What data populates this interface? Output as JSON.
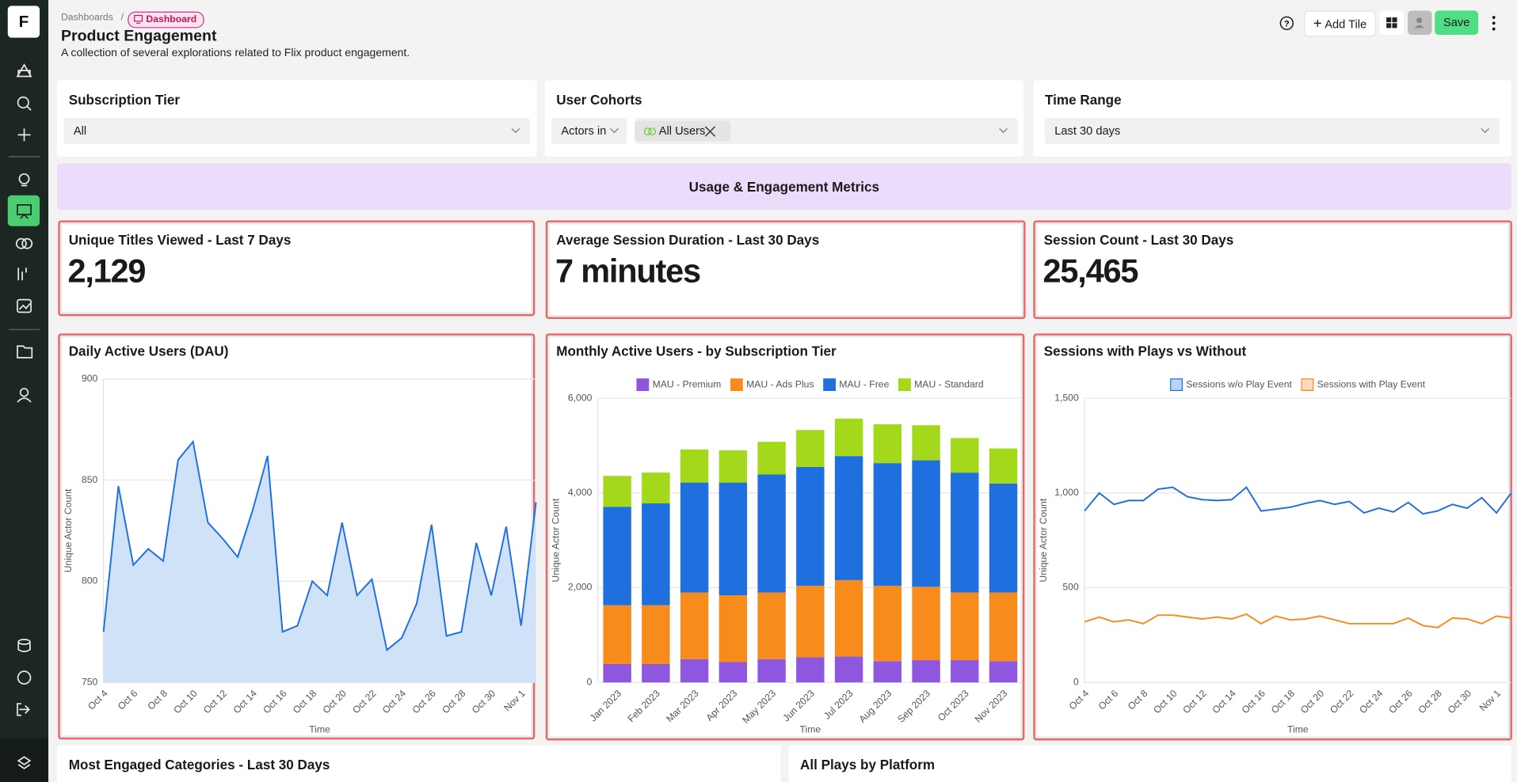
{
  "header": {
    "breadcrumb": "Dashboards",
    "badge": "Dashboard",
    "title": "Product Engagement",
    "description": "A collection of several explorations related to Flix product engagement.",
    "buttons": {
      "add_tile": "Add Tile",
      "save": "Save"
    }
  },
  "logo": "F",
  "filters": [
    {
      "label": "Subscription Tier",
      "value": "All"
    },
    {
      "label": "User Cohorts",
      "prefix": "Actors in",
      "value": "All Users"
    },
    {
      "label": "Time Range",
      "value": "Last 30 days"
    }
  ],
  "banner": "Usage & Engagement Metrics",
  "kpis": [
    {
      "title": "Unique Titles Viewed - Last 7 Days",
      "value": "2,129"
    },
    {
      "title": "Average Session Duration - Last 30 Days",
      "value": "7 minutes"
    },
    {
      "title": "Session Count - Last 30 Days",
      "value": "25,465"
    }
  ],
  "chart_data": [
    {
      "type": "area",
      "title": "Daily Active Users (DAU)",
      "x_label": "Time",
      "y_label": "Unique Actor Count",
      "color": "#1f6fde",
      "fill": "#cfe2f8",
      "categories": [
        "Oct 4",
        null,
        "Oct 6",
        null,
        "Oct 8",
        null,
        "Oct 10",
        null,
        "Oct 12",
        null,
        "Oct 14",
        null,
        "Oct 16",
        null,
        "Oct 18",
        null,
        "Oct 20",
        null,
        "Oct 22",
        null,
        "Oct 24",
        null,
        "Oct 26",
        null,
        "Oct 28",
        null,
        "Oct 30",
        null,
        "Nov 1",
        null
      ],
      "values": [
        775,
        847,
        808,
        816,
        810,
        860,
        869,
        829,
        821,
        812,
        835,
        862,
        775,
        778,
        800,
        793,
        829,
        793,
        801,
        766,
        772,
        789,
        828,
        773,
        775,
        819,
        793,
        827,
        778,
        839
      ],
      "ylim": [
        750,
        900
      ],
      "yticks": [
        750,
        800,
        850,
        900
      ],
      "grid": true
    },
    {
      "type": "bar",
      "stacked": true,
      "title": "Monthly Active Users - by Subscription Tier",
      "x_label": "Time",
      "y_label": "Unique Actor Count",
      "legend": "top",
      "categories": [
        "Jan 2023",
        "Feb 2023",
        "Mar 2023",
        "Apr 2023",
        "May 2023",
        "Jun 2023",
        "Jul 2023",
        "Aug 2023",
        "Sep 2023",
        "Oct 2023",
        "Nov 2023"
      ],
      "series": [
        {
          "name": "MAU - Premium",
          "color": "#8f56e0",
          "values": [
            390,
            390,
            490,
            430,
            490,
            530,
            550,
            450,
            470,
            470,
            450
          ]
        },
        {
          "name": "MAU - Ads Plus",
          "color": "#f78c1c",
          "values": [
            1240,
            1240,
            1410,
            1410,
            1410,
            1510,
            1610,
            1590,
            1550,
            1430,
            1450
          ]
        },
        {
          "name": "MAU - Free",
          "color": "#1f6fde",
          "values": [
            2080,
            2150,
            2320,
            2380,
            2490,
            2510,
            2620,
            2590,
            2670,
            2530,
            2300
          ]
        },
        {
          "name": "MAU - Standard",
          "color": "#a3d81b",
          "values": [
            650,
            650,
            700,
            680,
            690,
            780,
            790,
            820,
            740,
            730,
            740
          ]
        }
      ],
      "ylim": [
        0,
        6000
      ],
      "yticks": [
        0,
        {
          "value": 2000,
          "label": "2,000"
        },
        {
          "value": 4000,
          "label": "4,000"
        },
        {
          "value": 6000,
          "label": "6,000"
        }
      ],
      "grid": true
    },
    {
      "type": "line",
      "title": "Sessions with Plays vs Without",
      "x_label": "Time",
      "y_label": "Unique Actor Count",
      "legend": "top",
      "categories": [
        "Oct 4",
        null,
        "Oct 6",
        null,
        "Oct 8",
        null,
        "Oct 10",
        null,
        "Oct 12",
        null,
        "Oct 14",
        null,
        "Oct 16",
        null,
        "Oct 18",
        null,
        "Oct 20",
        null,
        "Oct 22",
        null,
        "Oct 24",
        null,
        "Oct 26",
        null,
        "Oct 28",
        null,
        "Oct 30",
        null,
        "Nov 1",
        null
      ],
      "series": [
        {
          "name": "Sessions w/o Play Event",
          "color": "#1f6fde",
          "values": [
            905,
            1000,
            940,
            960,
            960,
            1020,
            1030,
            980,
            965,
            960,
            965,
            1030,
            905,
            915,
            925,
            945,
            960,
            940,
            955,
            895,
            920,
            900,
            950,
            890,
            905,
            940,
            920,
            975,
            895,
            1000
          ]
        },
        {
          "name": "Sessions with Play Event",
          "color": "#f78c1c",
          "values": [
            320,
            345,
            320,
            330,
            310,
            355,
            355,
            345,
            335,
            345,
            335,
            360,
            310,
            350,
            330,
            335,
            350,
            330,
            310,
            310,
            310,
            310,
            340,
            300,
            290,
            340,
            335,
            310,
            350,
            340
          ]
        }
      ],
      "ylim": [
        0,
        1500
      ],
      "yticks": [
        0,
        500,
        {
          "value": 1000,
          "label": "1,000"
        },
        {
          "value": 1500,
          "label": "1,500"
        }
      ],
      "grid": true
    }
  ],
  "bottom_tiles": [
    "Most Engaged Categories - Last 30 Days",
    "All Plays by Platform"
  ]
}
